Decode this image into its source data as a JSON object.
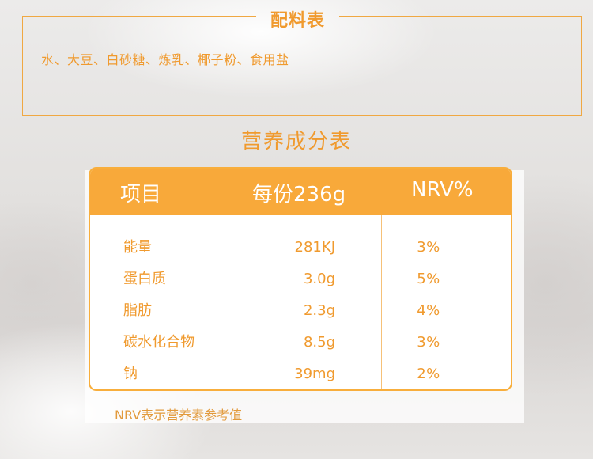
{
  "ingredients": {
    "title": "配料表",
    "list": "水、大豆、白砂糖、炼乳、椰子粉、食用盐"
  },
  "nutrition": {
    "title": "营养成分表",
    "headers": {
      "item": "项目",
      "per_serving": "每份236g",
      "nrv": "NRV%"
    },
    "rows": [
      {
        "name": "能量",
        "value": "281KJ",
        "nrv": "3%"
      },
      {
        "name": "蛋白质",
        "value": "3.0g",
        "nrv": "5%"
      },
      {
        "name": "脂肪",
        "value": "2.3g",
        "nrv": "4%"
      },
      {
        "name": "碳水化合物",
        "value": "8.5g",
        "nrv": "3%"
      },
      {
        "name": "钠",
        "value": "39mg",
        "nrv": "2%"
      }
    ],
    "footnote": "NRV表示营养素参考值"
  },
  "colors": {
    "accent": "#f8a93a",
    "text_orange": "#f09a2e"
  }
}
